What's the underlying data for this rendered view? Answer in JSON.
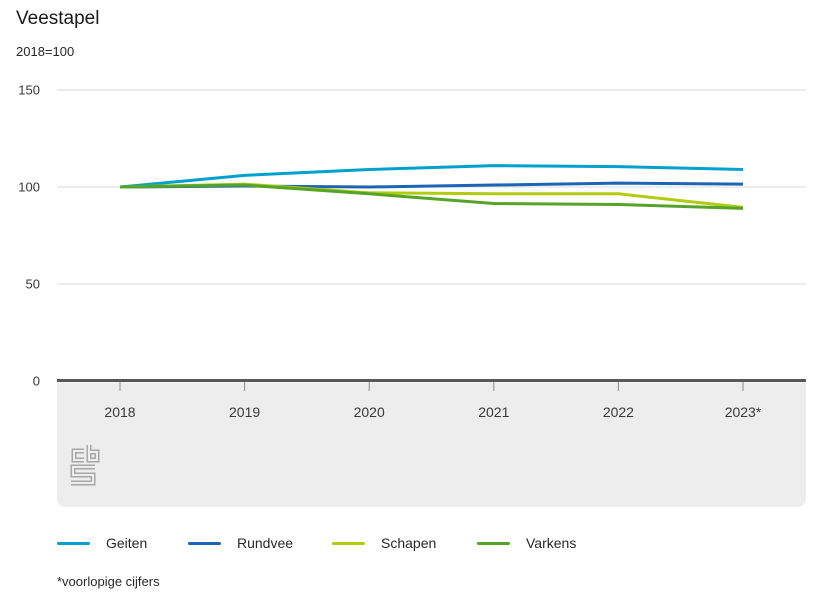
{
  "header": {
    "title": "Veestapel",
    "subtitle": "2018=100"
  },
  "chart_data": {
    "type": "line",
    "title": "Veestapel",
    "subtitle": "2018=100",
    "categories": [
      "2018",
      "2019",
      "2020",
      "2021",
      "2022",
      "2023*"
    ],
    "series": [
      {
        "name": "Geiten",
        "color": "#00a1cd",
        "values": [
          100,
          106,
          109,
          111,
          110.5,
          109
        ]
      },
      {
        "name": "Rundvee",
        "color": "#1e64b4",
        "values": [
          100,
          100.5,
          100,
          101,
          102,
          101.5
        ]
      },
      {
        "name": "Schapen",
        "color": "#b1cc0e",
        "values": [
          100,
          101.5,
          97,
          96.5,
          96.5,
          89.5
        ]
      },
      {
        "name": "Varkens",
        "color": "#56a427",
        "values": [
          100,
          101,
          96.5,
          91.5,
          91,
          89
        ]
      }
    ],
    "ylim": [
      0,
      150
    ],
    "yticks": [
      0,
      50,
      100,
      150
    ],
    "grid": "horizontal",
    "legend_position": "bottom",
    "xlabel": "",
    "ylabel": ""
  },
  "colors": {
    "gridline": "#d9d9d9",
    "axis_line": "#58585a",
    "axis_band": "#ededed",
    "tick": "#8c8c8c",
    "tick_label": "#383838",
    "logo": "#a8a8a8"
  },
  "footnote": "*voorlopige cijfers",
  "logo": {
    "name": "cbs-logo"
  }
}
